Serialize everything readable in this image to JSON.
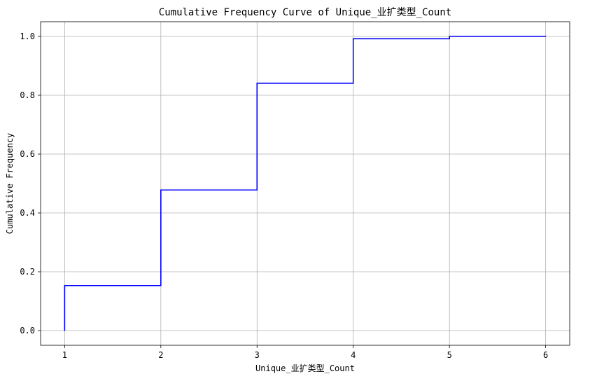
{
  "chart_data": {
    "type": "line",
    "step": "post",
    "title": "Cumulative Frequency Curve of Unique_业扩类型_Count",
    "xlabel": "Unique_业扩类型_Count",
    "ylabel": "Cumulative Frequency",
    "xlim": [
      0.75,
      6.25
    ],
    "ylim": [
      -0.05,
      1.05
    ],
    "xticks": [
      "1",
      "2",
      "3",
      "4",
      "5",
      "6"
    ],
    "yticks": [
      "0.0",
      "0.2",
      "0.4",
      "0.6",
      "0.8",
      "1.0"
    ],
    "grid": true,
    "series": [
      {
        "color": "#0000ff",
        "x": [
          1,
          1,
          2,
          3,
          4,
          5,
          6
        ],
        "y": [
          0.0,
          0.153,
          0.478,
          0.841,
          0.992,
          1.0,
          1.0
        ]
      }
    ]
  }
}
